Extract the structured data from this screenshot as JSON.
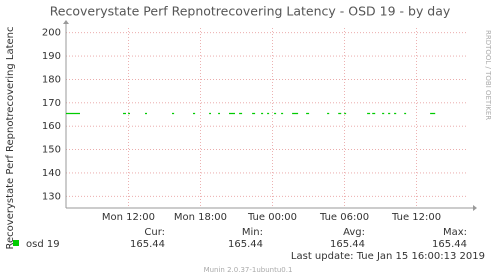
{
  "chart_data": {
    "type": "line",
    "title": "Recoverystate Perf Repnotrecovering Latency - OSD 19 - by day",
    "y_label": "Recoverystate Perf Repnotrecovering Latenc",
    "side_label": "RRDTOOL / TOBI OETIKER",
    "x": [
      6.8,
      7.97,
      9,
      11.55,
      11.8,
      11.9,
      11.97,
      12.13,
      12.8,
      13.38,
      13.55,
      14.6,
      15.63,
      15.8,
      16.6,
      17.38,
      17.55,
      18.1,
      18.72,
      18.88,
      19.2,
      19.47,
      19.63,
      20,
      20.38,
      20.88,
      21.05,
      21.22,
      21.47,
      21.9,
      22.3,
      22.55,
      22.8,
      23.05,
      23.22,
      23.4,
      23.55,
      23.72,
      23.9,
      24.13,
      24.3,
      24.5,
      24.72,
      24.88,
      25.2,
      25.63,
      26.13,
      26.5,
      26.8,
      27.05,
      27.8,
      28.55,
      28.72,
      29.1,
      29.47,
      29.72,
      29.85,
      29.97,
      30.13,
      31,
      31.88,
      32.13,
      32.2,
      32.3,
      32.55,
      32.8,
      33.13,
      33.3,
      33.45,
      33.63,
      33.8,
      33.95,
      34.13,
      34.3,
      34.6,
      34.97,
      35.13,
      36,
      37.13,
      37.55
    ],
    "series": [
      {
        "name": "osd 19",
        "color": "#00cc00",
        "values": [
          165.44,
          165.44,
          null,
          165.44,
          165.44,
          null,
          165.44,
          165.44,
          null,
          165.44,
          165.44,
          null,
          165.44,
          165.44,
          null,
          165.44,
          165.44,
          null,
          165.44,
          165.44,
          null,
          165.44,
          165.44,
          null,
          165.44,
          165.44,
          null,
          165.44,
          165.44,
          null,
          165.44,
          165.44,
          null,
          165.44,
          165.44,
          null,
          165.44,
          165.44,
          null,
          165.44,
          165.44,
          null,
          165.44,
          165.44,
          null,
          165.44,
          165.44,
          null,
          165.44,
          165.44,
          null,
          165.44,
          165.44,
          null,
          165.44,
          165.44,
          null,
          165.44,
          165.44,
          null,
          165.44,
          165.44,
          null,
          165.44,
          165.44,
          null,
          165.44,
          165.44,
          null,
          165.44,
          165.44,
          null,
          165.44,
          165.44,
          null,
          165.44,
          165.44,
          null,
          165.44,
          165.44
        ]
      }
    ],
    "xlim": [
      6.8,
      40.2
    ],
    "xticks": [
      {
        "value": 12,
        "label": "Mon 12:00"
      },
      {
        "value": 18,
        "label": "Mon 18:00"
      },
      {
        "value": 24,
        "label": "Tue 00:00"
      },
      {
        "value": 30,
        "label": "Tue 06:00"
      },
      {
        "value": 36,
        "label": "Tue 12:00"
      }
    ],
    "ylim": [
      125,
      202
    ],
    "yticks": [
      130,
      140,
      150,
      160,
      170,
      180,
      190,
      200
    ],
    "grid": true,
    "stats": {
      "headers": [
        "Cur:",
        "Min:",
        "Avg:",
        "Max:"
      ],
      "values": [
        165.44,
        165.44,
        165.44,
        165.44
      ]
    },
    "last_update": "Last update: Tue Jan 15 16:00:13 2019",
    "footer": "Munin 2.0.37-1ubuntu0.1"
  }
}
